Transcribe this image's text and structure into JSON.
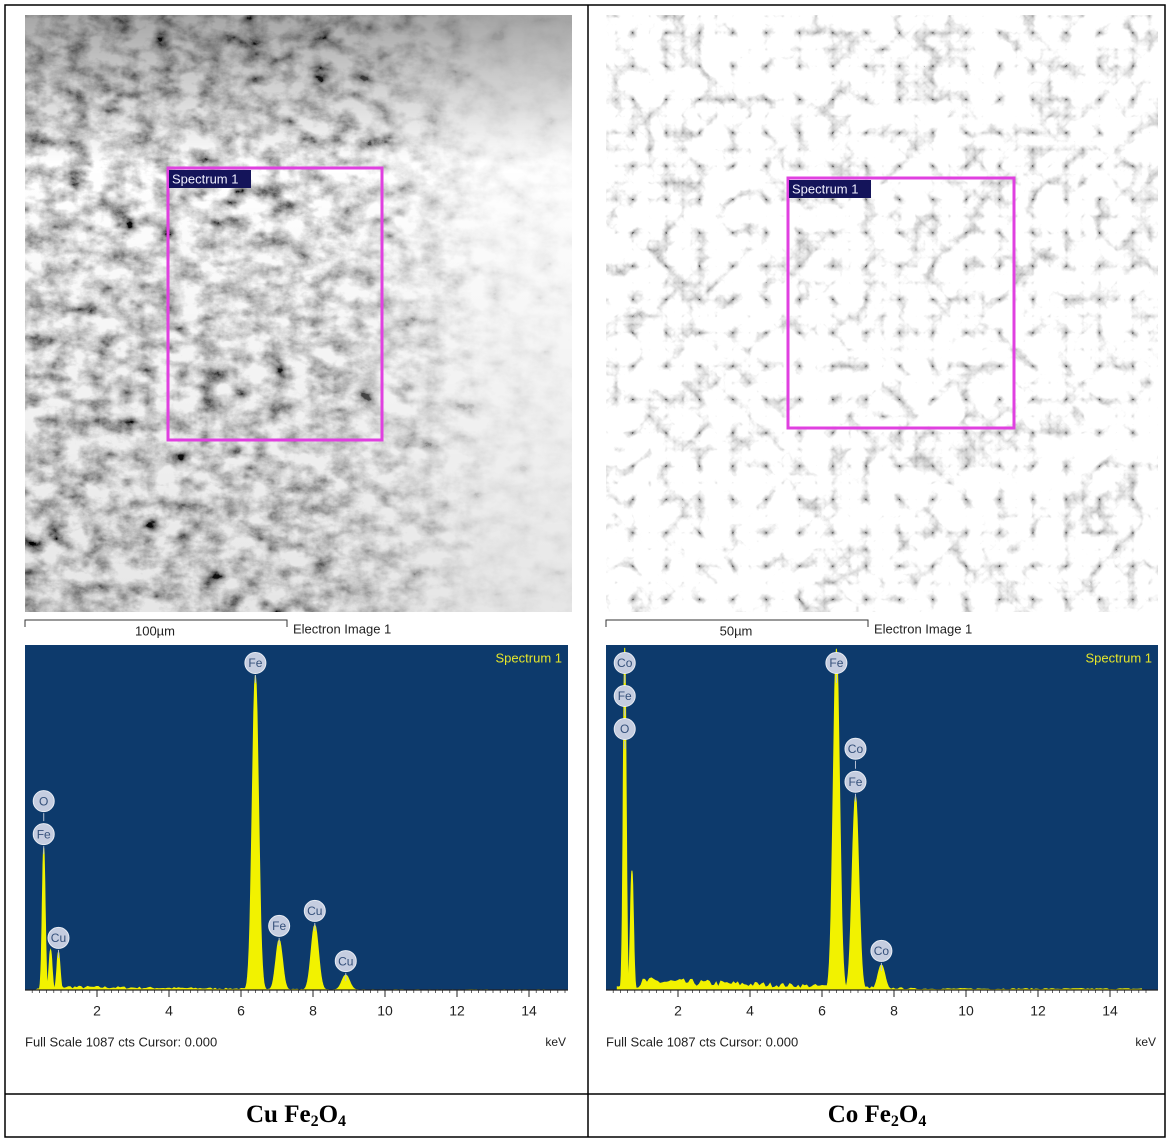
{
  "panels": [
    {
      "sem": {
        "region_label": "Spectrum 1",
        "scale_bar": "100µm",
        "image_label": "Electron Image 1"
      },
      "eds": {
        "title": "Spectrum 1",
        "xlim": [
          0,
          15
        ],
        "ylim": [
          0,
          1087
        ],
        "xticks": [
          2,
          4,
          6,
          8,
          10,
          12,
          14
        ],
        "x_unit": "keV",
        "footer": "Full Scale 1087 cts Cursor: 0.000",
        "color": "#f2f200",
        "background": "#0d3a6c",
        "peaks": [
          {
            "keV": 0.52,
            "cts": 447,
            "labels": [
              "O",
              "Fe"
            ]
          },
          {
            "keV": 0.71,
            "cts": 126
          },
          {
            "keV": 0.93,
            "cts": 120,
            "labels": [
              "Cu"
            ]
          },
          {
            "keV": 6.4,
            "cts": 992,
            "labels": [
              "Fe"
            ]
          },
          {
            "keV": 7.06,
            "cts": 158,
            "labels": [
              "Fe"
            ]
          },
          {
            "keV": 8.05,
            "cts": 205,
            "labels": [
              "Cu"
            ]
          },
          {
            "keV": 8.91,
            "cts": 47,
            "labels": [
              "Cu"
            ]
          }
        ]
      },
      "caption": [
        "Cu Fe",
        "2",
        "O",
        "4"
      ]
    },
    {
      "sem": {
        "region_label": "Spectrum 1",
        "scale_bar": "50µm",
        "image_label": "Electron Image 1"
      },
      "eds": {
        "title": "Spectrum 1",
        "xlim": [
          0,
          15
        ],
        "ylim": [
          0,
          1087
        ],
        "xticks": [
          2,
          4,
          6,
          8,
          10,
          12,
          14
        ],
        "x_unit": "keV",
        "footer": "Full Scale 1087 cts Cursor: 0.000",
        "color": "#f2f200",
        "background": "#0d3a6c",
        "peaks": [
          {
            "keV": 0.52,
            "cts": 1078,
            "labels": [
              "Co",
              "Fe",
              "O"
            ]
          },
          {
            "keV": 0.72,
            "cts": 376
          },
          {
            "keV": 6.4,
            "cts": 1075,
            "labels": [
              "Fe"
            ]
          },
          {
            "keV": 6.93,
            "cts": 612,
            "labels": [
              "Co",
              "Fe"
            ]
          },
          {
            "keV": 7.65,
            "cts": 79,
            "labels": [
              "Co"
            ]
          }
        ]
      },
      "caption": [
        "Co Fe",
        "2",
        "O",
        "4"
      ]
    }
  ]
}
